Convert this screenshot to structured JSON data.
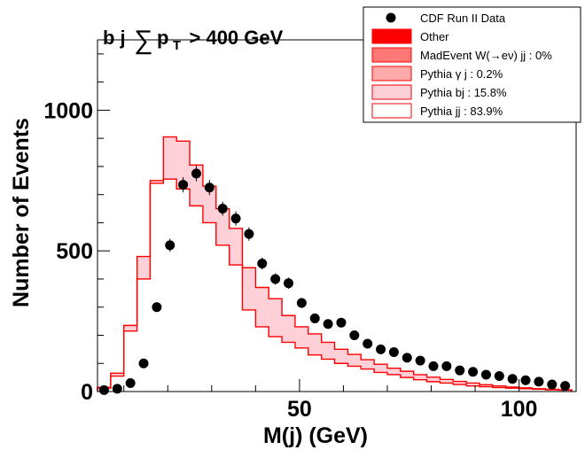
{
  "chart_data": {
    "type": "histogram",
    "title": "b j ∑p_T > 400 GeV",
    "title_parts": {
      "left": "b j",
      "sum": "∑",
      "p": "p",
      "sub": "T",
      "right": "> 400 GeV"
    },
    "xlabel": "M(j) (GeV)",
    "ylabel": "Number of Events",
    "xlim": [
      4,
      113
    ],
    "ylim": [
      0,
      1250
    ],
    "xticks": [
      {
        "value": 50,
        "label": "50"
      },
      {
        "value": 100,
        "label": "100"
      }
    ],
    "yticks": [
      {
        "value": 0,
        "label": "0"
      },
      {
        "value": 500,
        "label": "500"
      },
      {
        "value": 1000,
        "label": "1000"
      }
    ],
    "grid": false,
    "legend_position": "top-right",
    "bin_edges": [
      4,
      7,
      10,
      13,
      16,
      19,
      22,
      25,
      28,
      31,
      34,
      37,
      40,
      43,
      46,
      49,
      52,
      55,
      58,
      61,
      64,
      67,
      70,
      73,
      76,
      79,
      82,
      85,
      88,
      91,
      94,
      97,
      100,
      103,
      106,
      109,
      112
    ],
    "series": [
      {
        "name": "Pythia jj : 83.9%",
        "style": "outline",
        "color": "#ff0000",
        "values": [
          12,
          55,
          215,
          400,
          740,
          755,
          720,
          660,
          600,
          520,
          450,
          290,
          230,
          195,
          175,
          155,
          130,
          115,
          100,
          90,
          80,
          68,
          60,
          50,
          42,
          35,
          30,
          25,
          20,
          17,
          14,
          12,
          10,
          8,
          6,
          5
        ]
      },
      {
        "name": "Pythia bj : 15.8%",
        "style": "filled",
        "color": "#ffd0d8",
        "values": [
          15,
          65,
          235,
          480,
          750,
          905,
          890,
          805,
          730,
          650,
          580,
          440,
          370,
          330,
          270,
          230,
          205,
          175,
          150,
          132,
          113,
          97,
          83,
          72,
          60,
          51,
          43,
          36,
          30,
          24,
          20,
          16,
          13,
          10,
          8,
          6
        ]
      },
      {
        "name": "Pythia γ j : 0.2%",
        "style": "filled",
        "color": "#ffaaaa",
        "values": []
      },
      {
        "name": "MadEvent W(→eν) jj : 0%",
        "style": "filled",
        "color": "#ff7777",
        "values": []
      },
      {
        "name": "Other",
        "style": "filled",
        "color": "#ff0000",
        "values": []
      }
    ],
    "data_points": {
      "name": "CDF Run II Data",
      "x": [
        5.5,
        8.5,
        11.5,
        14.5,
        17.5,
        20.5,
        23.5,
        26.5,
        29.5,
        32.5,
        35.5,
        38.5,
        41.5,
        44.5,
        47.5,
        50.5,
        53.5,
        56.5,
        59.5,
        62.5,
        65.5,
        68.5,
        71.5,
        74.5,
        77.5,
        80.5,
        83.5,
        86.5,
        89.5,
        92.5,
        95.5,
        98.5,
        101.5,
        104.5,
        107.5,
        110.5
      ],
      "y": [
        5,
        10,
        30,
        100,
        300,
        520,
        735,
        775,
        725,
        650,
        615,
        560,
        455,
        400,
        385,
        315,
        260,
        240,
        245,
        200,
        170,
        150,
        140,
        120,
        110,
        90,
        90,
        75,
        70,
        60,
        55,
        45,
        40,
        35,
        25,
        20
      ],
      "err": [
        2,
        3,
        6,
        10,
        17,
        23,
        27,
        28,
        27,
        25,
        25,
        24,
        21,
        20,
        20,
        18,
        16,
        15,
        16,
        14,
        13,
        12,
        12,
        11,
        10,
        9,
        9,
        9,
        8,
        8,
        7,
        7,
        6,
        6,
        5,
        4
      ]
    }
  }
}
